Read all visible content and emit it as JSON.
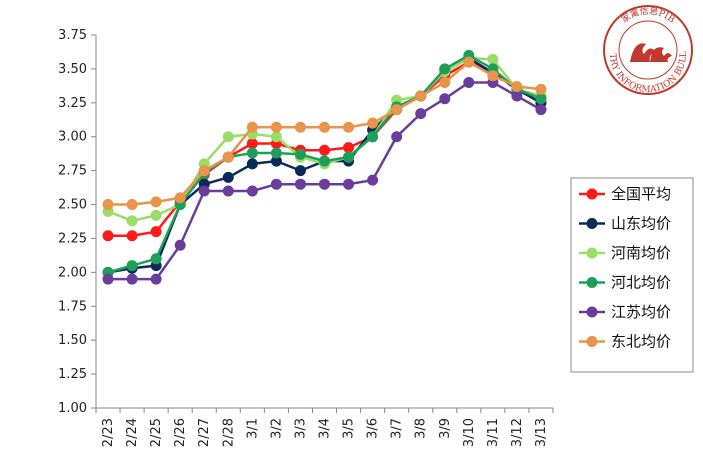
{
  "chart_data": {
    "type": "line",
    "categories": [
      "2/23",
      "2/24",
      "2/25",
      "2/26",
      "2/27",
      "2/28",
      "3/1",
      "3/2",
      "3/3",
      "3/4",
      "3/5",
      "3/6",
      "3/7",
      "3/8",
      "3/9",
      "3/10",
      "3/11",
      "3/12",
      "3/13"
    ],
    "ylim": [
      1.0,
      3.75
    ],
    "yticks": [
      "1.00",
      "1.25",
      "1.50",
      "1.75",
      "2.00",
      "2.25",
      "2.50",
      "2.75",
      "3.00",
      "3.25",
      "3.50",
      "3.75"
    ],
    "grid": false,
    "legend_position": "right",
    "series": [
      {
        "name": "全国平均",
        "color": "#ff1a1a",
        "values": [
          2.27,
          2.27,
          2.3,
          2.52,
          2.72,
          2.85,
          2.95,
          2.95,
          2.9,
          2.9,
          2.92,
          3.0,
          3.2,
          3.3,
          3.45,
          3.55,
          3.48,
          3.35,
          3.3
        ]
      },
      {
        "name": "山东均价",
        "color": "#0b2a5c",
        "values": [
          2.0,
          2.03,
          2.05,
          2.5,
          2.65,
          2.7,
          2.8,
          2.82,
          2.75,
          2.82,
          2.82,
          3.05,
          3.22,
          3.3,
          3.48,
          3.58,
          3.47,
          3.35,
          3.25
        ]
      },
      {
        "name": "河南均价",
        "color": "#99dd66",
        "values": [
          2.45,
          2.38,
          2.42,
          2.5,
          2.8,
          3.0,
          3.02,
          3.0,
          2.85,
          2.8,
          2.85,
          3.0,
          3.27,
          3.3,
          3.48,
          3.58,
          3.57,
          3.35,
          3.3
        ]
      },
      {
        "name": "河北均价",
        "color": "#1f9e5a",
        "values": [
          2.0,
          2.05,
          2.1,
          2.5,
          2.73,
          2.85,
          2.88,
          2.88,
          2.87,
          2.82,
          2.85,
          3.0,
          3.22,
          3.3,
          3.5,
          3.6,
          3.5,
          3.35,
          3.28
        ]
      },
      {
        "name": "江苏均价",
        "color": "#6a3d9a",
        "values": [
          1.95,
          1.95,
          1.95,
          2.2,
          2.6,
          2.6,
          2.6,
          2.65,
          2.65,
          2.65,
          2.65,
          2.68,
          3.0,
          3.17,
          3.28,
          3.4,
          3.4,
          3.3,
          3.2
        ]
      },
      {
        "name": "东北均价",
        "color": "#e8944a",
        "values": [
          2.5,
          2.5,
          2.52,
          2.55,
          2.75,
          2.85,
          3.07,
          3.07,
          3.07,
          3.07,
          3.07,
          3.1,
          3.2,
          3.3,
          3.4,
          3.55,
          3.45,
          3.37,
          3.35
        ]
      }
    ]
  },
  "logo": {
    "name": "poultry-logo",
    "text_cn": "家禽信息PIB",
    "text_en": "POULTRY INFORMATION BULLETIN"
  }
}
